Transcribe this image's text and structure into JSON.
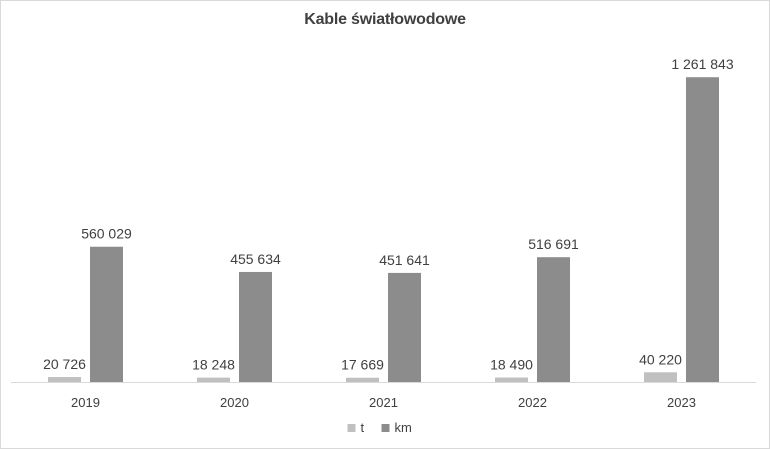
{
  "chart_data": {
    "type": "bar",
    "title": "Kable światłowodowe",
    "categories": [
      "2019",
      "2020",
      "2021",
      "2022",
      "2023"
    ],
    "series": [
      {
        "name": "t",
        "values": [
          20726,
          18248,
          17669,
          18490,
          40220
        ],
        "labels": [
          "20 726",
          "18 248",
          "17 669",
          "18 490",
          "40 220"
        ],
        "color": "#c0c0c0"
      },
      {
        "name": "km",
        "values": [
          560029,
          455634,
          451641,
          516691,
          1261843
        ],
        "labels": [
          "560 029",
          "455 634",
          "451 641",
          "516 691",
          "1 261 843"
        ],
        "color": "#8c8c8c"
      }
    ],
    "ylim": [
      0,
      1300000
    ],
    "grid": false,
    "legend_position": "bottom",
    "axis_color": "#d9d9d9",
    "label_color": "#404040"
  }
}
